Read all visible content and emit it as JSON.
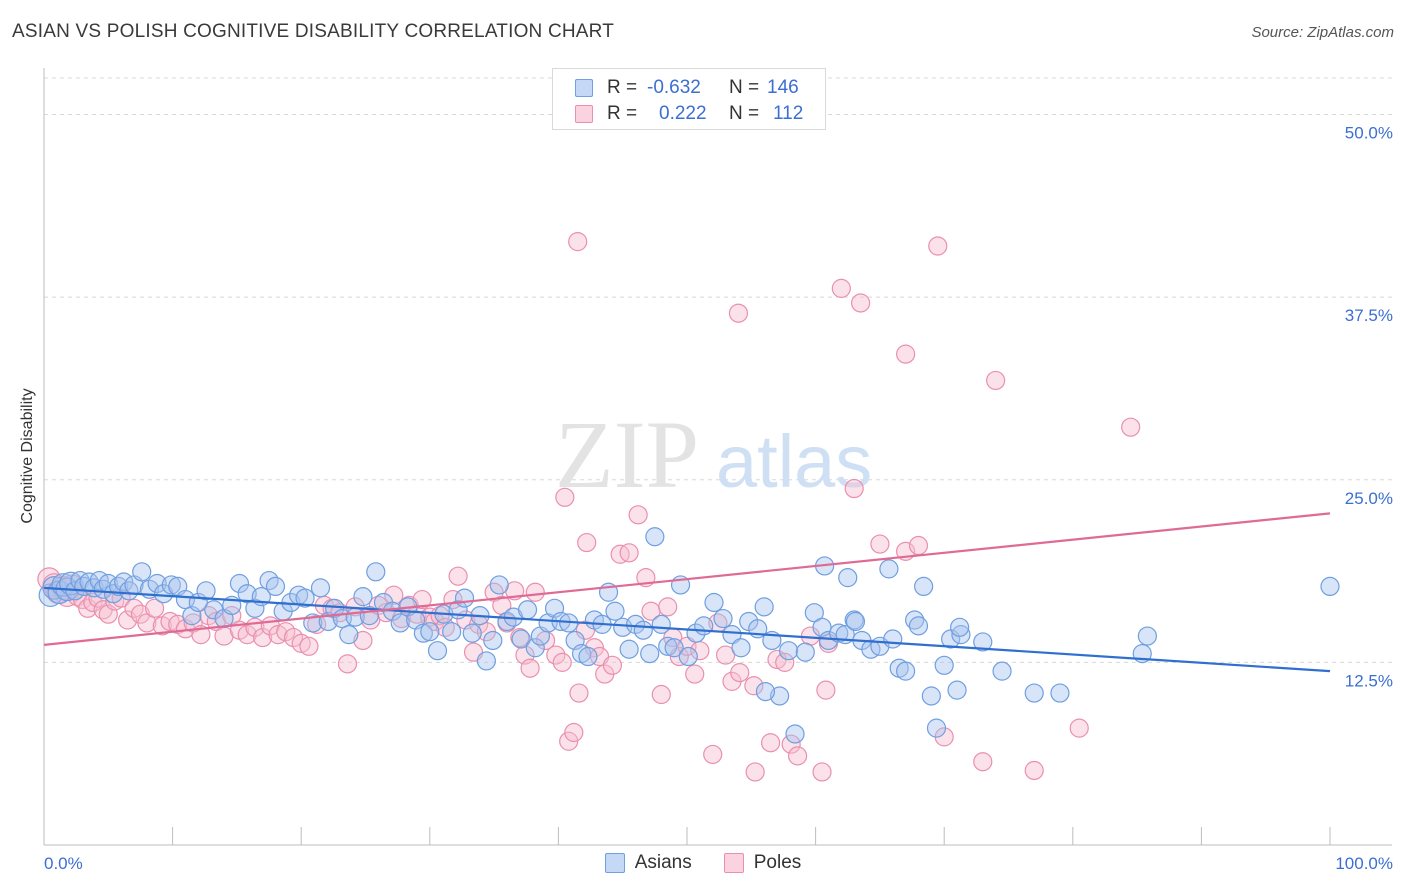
{
  "header": {
    "title": "ASIAN VS POLISH COGNITIVE DISABILITY CORRELATION CHART",
    "source": "Source: ZipAtlas.com"
  },
  "watermark": {
    "text_zip": "ZIP",
    "text_atlas": "atlas"
  },
  "legend_top": {
    "rows": [
      {
        "r_label": "R =",
        "r_value": "-0.632",
        "n_label": "N =",
        "n_value": "146"
      },
      {
        "r_label": "R =",
        "r_value": "0.222",
        "n_label": "N =",
        "n_value": "112"
      }
    ]
  },
  "colors": {
    "asians_fill": "#a9c4ee",
    "asians_stroke": "#6f9fe0",
    "asians_line": "#2f6fd0",
    "poles_fill": "#f7bfd0",
    "poles_stroke": "#ea8fae",
    "poles_line": "#e06a96",
    "tick_label": "#3b6fd1",
    "grid": "#d8d8d8"
  },
  "chart_data": {
    "type": "scatter",
    "title": "ASIAN VS POLISH COGNITIVE DISABILITY CORRELATION CHART",
    "xlabel": "",
    "ylabel": "Cognitive Disability",
    "xlim": [
      0,
      100
    ],
    "ylim": [
      0,
      52.5
    ],
    "x_tick_labels": [
      "0.0%",
      "100.0%"
    ],
    "y_ticks": [
      12.5,
      25.0,
      37.5,
      50.0
    ],
    "y_tick_labels": [
      "12.5%",
      "25.0%",
      "37.5%",
      "50.0%"
    ],
    "grid": true,
    "legend_position": "top-center",
    "series": [
      {
        "name": "Asians",
        "r": -0.632,
        "n": 146,
        "trend": {
          "x": [
            0,
            100
          ],
          "y": [
            17.6,
            11.9
          ]
        },
        "points": [
          [
            0.5,
            17.1
          ],
          [
            0.8,
            17.6
          ],
          [
            1.2,
            17.3
          ],
          [
            1.5,
            17.8
          ],
          [
            1.8,
            17.5
          ],
          [
            2.1,
            17.9
          ],
          [
            2.4,
            17.4
          ],
          [
            2.8,
            18.1
          ],
          [
            3.1,
            17.7
          ],
          [
            3.5,
            18.0
          ],
          [
            3.9,
            17.6
          ],
          [
            4.3,
            18.1
          ],
          [
            4.6,
            17.5
          ],
          [
            5.0,
            17.9
          ],
          [
            5.4,
            17.2
          ],
          [
            5.8,
            17.7
          ],
          [
            6.2,
            18.0
          ],
          [
            6.6,
            17.4
          ],
          [
            7.0,
            17.8
          ],
          [
            7.6,
            18.7
          ],
          [
            8.2,
            17.5
          ],
          [
            8.8,
            17.9
          ],
          [
            9.3,
            17.2
          ],
          [
            9.9,
            17.8
          ],
          [
            10.4,
            17.7
          ],
          [
            11.0,
            16.8
          ],
          [
            11.5,
            15.7
          ],
          [
            12.0,
            16.6
          ],
          [
            12.6,
            17.4
          ],
          [
            13.2,
            16.1
          ],
          [
            14.0,
            15.5
          ],
          [
            14.6,
            16.4
          ],
          [
            15.2,
            17.9
          ],
          [
            15.8,
            17.2
          ],
          [
            16.4,
            16.2
          ],
          [
            16.9,
            17.0
          ],
          [
            17.5,
            18.1
          ],
          [
            18.0,
            17.7
          ],
          [
            18.6,
            16.0
          ],
          [
            19.2,
            16.6
          ],
          [
            19.8,
            17.1
          ],
          [
            20.3,
            16.9
          ],
          [
            20.9,
            15.2
          ],
          [
            21.5,
            17.6
          ],
          [
            22.1,
            15.3
          ],
          [
            22.6,
            16.2
          ],
          [
            23.2,
            15.5
          ],
          [
            23.7,
            14.4
          ],
          [
            24.2,
            15.6
          ],
          [
            24.8,
            17.0
          ],
          [
            25.3,
            15.7
          ],
          [
            25.8,
            18.7
          ],
          [
            26.4,
            16.6
          ],
          [
            27.1,
            16.0
          ],
          [
            27.7,
            15.2
          ],
          [
            28.3,
            16.3
          ],
          [
            28.9,
            15.4
          ],
          [
            29.5,
            14.5
          ],
          [
            30.0,
            14.6
          ],
          [
            30.6,
            13.3
          ],
          [
            31.1,
            15.8
          ],
          [
            31.7,
            14.6
          ],
          [
            32.2,
            16.1
          ],
          [
            32.7,
            16.9
          ],
          [
            33.3,
            14.5
          ],
          [
            33.9,
            15.7
          ],
          [
            34.4,
            12.6
          ],
          [
            34.9,
            14.0
          ],
          [
            35.4,
            17.8
          ],
          [
            36.0,
            15.3
          ],
          [
            36.5,
            15.6
          ],
          [
            37.1,
            14.1
          ],
          [
            37.6,
            16.1
          ],
          [
            38.2,
            13.5
          ],
          [
            38.6,
            14.3
          ],
          [
            39.2,
            15.2
          ],
          [
            39.7,
            16.2
          ],
          [
            40.2,
            15.3
          ],
          [
            40.8,
            15.2
          ],
          [
            41.3,
            14.0
          ],
          [
            41.8,
            13.1
          ],
          [
            42.3,
            12.9
          ],
          [
            42.8,
            15.4
          ],
          [
            43.4,
            15.1
          ],
          [
            43.9,
            17.3
          ],
          [
            44.4,
            16.0
          ],
          [
            45.0,
            14.9
          ],
          [
            45.5,
            13.4
          ],
          [
            46.0,
            15.1
          ],
          [
            46.6,
            14.7
          ],
          [
            47.1,
            13.1
          ],
          [
            47.5,
            21.1
          ],
          [
            48.0,
            15.1
          ],
          [
            48.5,
            13.6
          ],
          [
            49.0,
            13.5
          ],
          [
            49.5,
            17.8
          ],
          [
            50.1,
            12.9
          ],
          [
            50.7,
            14.5
          ],
          [
            51.3,
            15.0
          ],
          [
            52.1,
            16.6
          ],
          [
            52.8,
            15.5
          ],
          [
            53.5,
            14.4
          ],
          [
            54.2,
            13.5
          ],
          [
            54.8,
            15.3
          ],
          [
            55.5,
            14.8
          ],
          [
            56.0,
            16.3
          ],
          [
            56.6,
            14.0
          ],
          [
            57.2,
            10.2
          ],
          [
            57.9,
            13.3
          ],
          [
            58.4,
            7.6
          ],
          [
            59.2,
            13.2
          ],
          [
            59.9,
            15.9
          ],
          [
            60.5,
            14.9
          ],
          [
            61.0,
            14.0
          ],
          [
            61.8,
            14.5
          ],
          [
            62.3,
            14.4
          ],
          [
            63.0,
            15.4
          ],
          [
            63.6,
            14.0
          ],
          [
            64.3,
            13.4
          ],
          [
            65.0,
            13.6
          ],
          [
            65.7,
            18.9
          ],
          [
            66.0,
            14.1
          ],
          [
            66.5,
            12.1
          ],
          [
            67.0,
            11.9
          ],
          [
            67.7,
            15.4
          ],
          [
            68.4,
            17.7
          ],
          [
            69.0,
            10.2
          ],
          [
            69.4,
            8.0
          ],
          [
            70.0,
            12.3
          ],
          [
            70.5,
            14.1
          ],
          [
            71.0,
            10.6
          ],
          [
            71.3,
            14.4
          ],
          [
            73.0,
            13.9
          ],
          [
            74.5,
            11.9
          ],
          [
            77.0,
            10.4
          ],
          [
            79.0,
            10.4
          ],
          [
            85.4,
            13.1
          ],
          [
            85.8,
            14.3
          ],
          [
            100.0,
            17.7
          ]
        ]
      },
      {
        "name": "Poles",
        "r": 0.222,
        "n": 112,
        "trend": {
          "x": [
            0,
            100
          ],
          "y": [
            13.7,
            22.7
          ]
        },
        "points": [
          [
            0.4,
            18.2
          ],
          [
            0.8,
            17.8
          ],
          [
            1.1,
            17.3
          ],
          [
            1.5,
            17.6
          ],
          [
            1.8,
            17.1
          ],
          [
            2.2,
            17.7
          ],
          [
            2.6,
            17.0
          ],
          [
            3.0,
            16.8
          ],
          [
            3.4,
            16.2
          ],
          [
            3.8,
            16.6
          ],
          [
            4.2,
            16.9
          ],
          [
            4.6,
            16.1
          ],
          [
            5.0,
            15.8
          ],
          [
            5.5,
            16.7
          ],
          [
            6.0,
            16.9
          ],
          [
            6.5,
            15.4
          ],
          [
            7.0,
            16.2
          ],
          [
            7.5,
            15.8
          ],
          [
            8.0,
            15.2
          ],
          [
            8.6,
            16.2
          ],
          [
            9.2,
            15.0
          ],
          [
            9.8,
            15.3
          ],
          [
            10.4,
            15.1
          ],
          [
            11.0,
            14.8
          ],
          [
            11.6,
            15.2
          ],
          [
            12.2,
            14.4
          ],
          [
            12.8,
            15.7
          ],
          [
            13.4,
            15.3
          ],
          [
            14.0,
            14.3
          ],
          [
            14.6,
            15.7
          ],
          [
            15.2,
            14.7
          ],
          [
            15.8,
            14.4
          ],
          [
            16.4,
            14.9
          ],
          [
            17.0,
            14.2
          ],
          [
            17.6,
            15.0
          ],
          [
            18.2,
            14.4
          ],
          [
            18.8,
            14.6
          ],
          [
            19.4,
            14.2
          ],
          [
            20.0,
            13.8
          ],
          [
            20.6,
            13.6
          ],
          [
            21.2,
            15.1
          ],
          [
            21.8,
            16.4
          ],
          [
            22.4,
            16.2
          ],
          [
            23.0,
            15.9
          ],
          [
            23.6,
            12.4
          ],
          [
            24.2,
            16.3
          ],
          [
            24.8,
            14.0
          ],
          [
            25.4,
            15.4
          ],
          [
            26.0,
            16.4
          ],
          [
            26.6,
            15.9
          ],
          [
            27.2,
            17.1
          ],
          [
            27.8,
            15.5
          ],
          [
            28.4,
            16.4
          ],
          [
            29.0,
            15.8
          ],
          [
            29.4,
            16.8
          ],
          [
            30.0,
            15.6
          ],
          [
            30.4,
            15.3
          ],
          [
            30.8,
            15.7
          ],
          [
            31.2,
            14.9
          ],
          [
            31.8,
            16.8
          ],
          [
            32.2,
            18.4
          ],
          [
            32.8,
            15.4
          ],
          [
            33.4,
            13.2
          ],
          [
            33.8,
            15.1
          ],
          [
            34.4,
            14.6
          ],
          [
            35.0,
            17.3
          ],
          [
            35.6,
            16.4
          ],
          [
            36.0,
            15.2
          ],
          [
            36.6,
            17.4
          ],
          [
            37.0,
            14.2
          ],
          [
            37.4,
            13.0
          ],
          [
            37.8,
            12.1
          ],
          [
            38.2,
            17.3
          ],
          [
            39.0,
            14.0
          ],
          [
            39.8,
            13.0
          ],
          [
            40.3,
            12.5
          ],
          [
            40.8,
            7.1
          ],
          [
            41.2,
            7.7
          ],
          [
            41.6,
            10.4
          ],
          [
            42.1,
            14.7
          ],
          [
            42.8,
            13.5
          ],
          [
            43.2,
            12.9
          ],
          [
            43.6,
            11.7
          ],
          [
            44.2,
            12.3
          ],
          [
            44.8,
            19.9
          ],
          [
            45.5,
            20.0
          ],
          [
            46.2,
            22.6
          ],
          [
            46.8,
            18.3
          ],
          [
            47.2,
            16.0
          ],
          [
            48.0,
            10.3
          ],
          [
            48.5,
            16.3
          ],
          [
            48.9,
            14.2
          ],
          [
            49.4,
            12.9
          ],
          [
            50.0,
            13.6
          ],
          [
            50.6,
            11.7
          ],
          [
            51.0,
            13.3
          ],
          [
            52.0,
            6.2
          ],
          [
            52.4,
            15.2
          ],
          [
            53.0,
            13.0
          ],
          [
            53.5,
            11.2
          ],
          [
            54.1,
            11.8
          ],
          [
            55.2,
            10.9
          ],
          [
            56.5,
            7.0
          ],
          [
            57.0,
            12.7
          ],
          [
            57.6,
            12.5
          ],
          [
            58.1,
            6.9
          ],
          [
            58.6,
            6.1
          ],
          [
            59.6,
            14.3
          ],
          [
            60.8,
            10.6
          ],
          [
            61.0,
            13.8
          ],
          [
            63.0,
            24.4
          ],
          [
            65.0,
            20.6
          ],
          [
            67.0,
            20.1
          ],
          [
            68.0,
            20.5
          ],
          [
            70.0,
            7.4
          ],
          [
            73.0,
            5.7
          ]
        ]
      }
    ],
    "annotated_points_note": "",
    "outliers": {
      "Poles": [
        [
          41.5,
          41.3
        ],
        [
          54.0,
          36.4
        ],
        [
          62.0,
          38.1
        ],
        [
          63.5,
          37.1
        ],
        [
          67.0,
          33.6
        ],
        [
          69.5,
          41.0
        ],
        [
          74.0,
          31.8
        ],
        [
          84.5,
          28.6
        ],
        [
          40.5,
          23.8
        ],
        [
          42.2,
          20.7
        ],
        [
          55.3,
          5.0
        ],
        [
          77.0,
          5.1
        ],
        [
          60.5,
          5.0
        ],
        [
          80.5,
          8.0
        ]
      ],
      "Asians": [
        [
          60.7,
          19.1
        ],
        [
          56.1,
          10.5
        ],
        [
          62.5,
          18.3
        ],
        [
          63.1,
          15.3
        ],
        [
          68.0,
          15.0
        ],
        [
          71.2,
          14.9
        ]
      ]
    }
  }
}
